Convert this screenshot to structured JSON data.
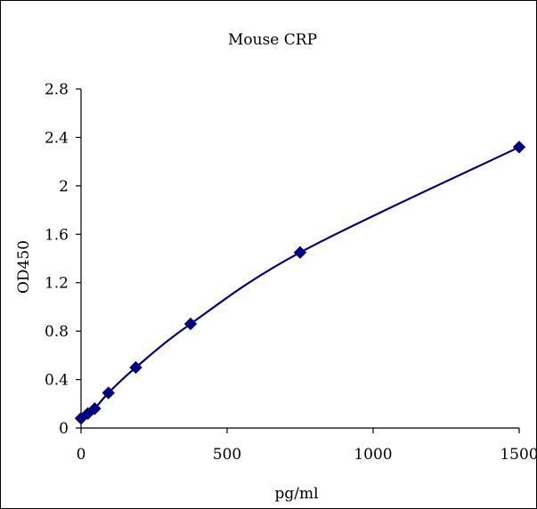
{
  "chart_data": {
    "type": "scatter",
    "title": "Mouse CRP",
    "xlabel": "pg/ml",
    "ylabel": "OD450",
    "xlim": [
      0,
      1500
    ],
    "ylim": [
      0,
      2.8
    ],
    "x_ticks": [
      0,
      500,
      1000,
      1500
    ],
    "y_ticks": [
      0,
      0.4,
      0.8,
      1.2,
      1.6,
      2,
      2.4,
      2.8
    ],
    "x_tick_labels": [
      "0",
      "500",
      "1000",
      "1500"
    ],
    "y_tick_labels": [
      "0",
      "0.4",
      "0.8",
      "1.2",
      "1.6",
      "2",
      "2.4",
      "2.8"
    ],
    "grid": false,
    "series": [
      {
        "marker": "diamond",
        "color": "#000080",
        "x": [
          0,
          23.4,
          46.9,
          93.75,
          187.5,
          375,
          750,
          1500
        ],
        "y": [
          0.08,
          0.12,
          0.16,
          0.29,
          0.5,
          0.86,
          1.45,
          2.32
        ]
      }
    ]
  }
}
